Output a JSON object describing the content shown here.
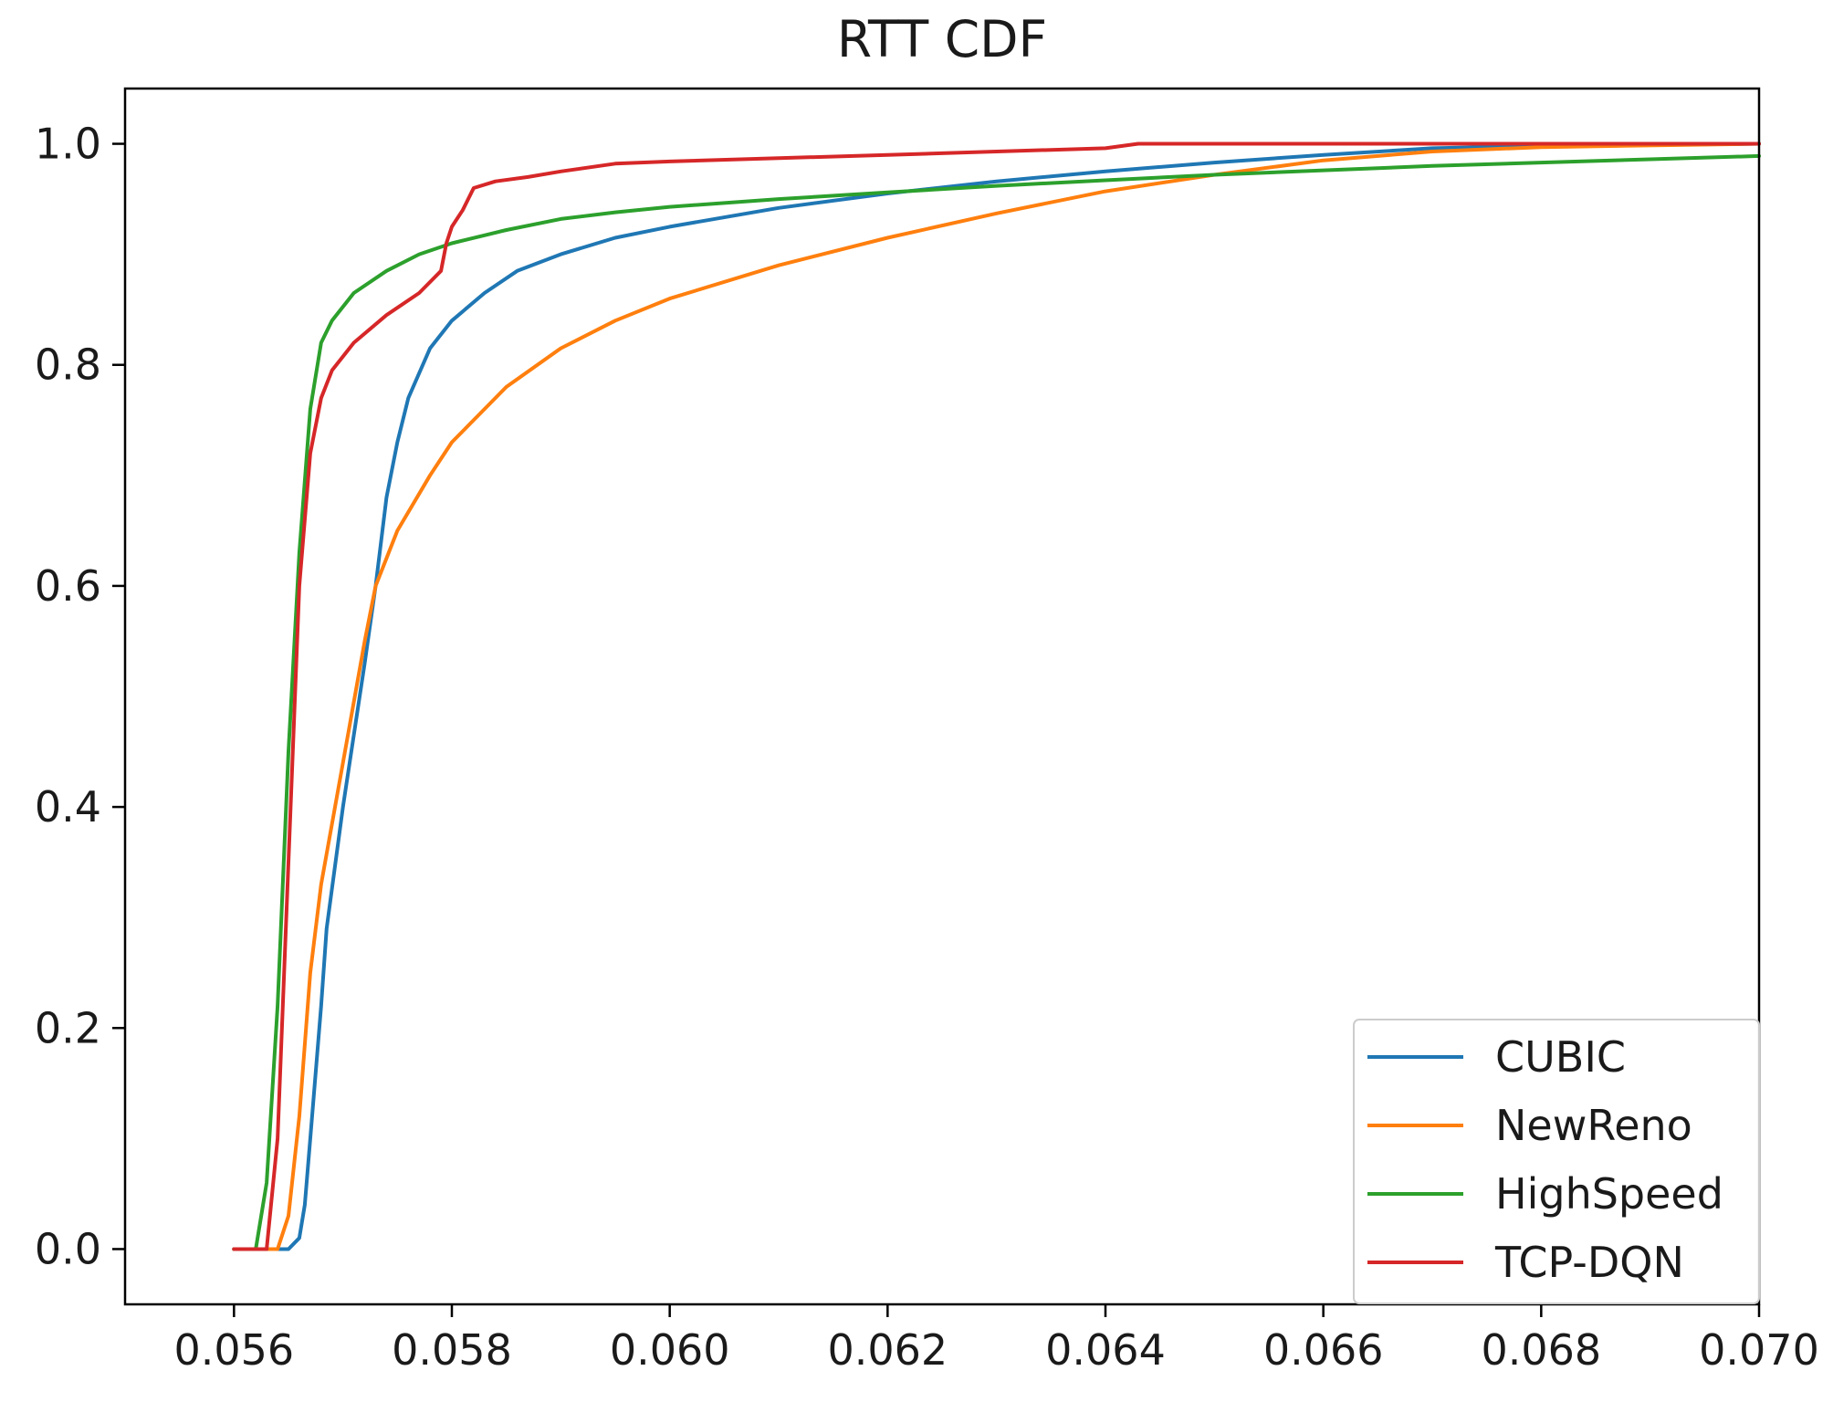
{
  "chart_data": {
    "type": "line",
    "title": "RTT CDF",
    "xlabel": "",
    "ylabel": "",
    "xlim": [
      0.055,
      0.07
    ],
    "ylim": [
      -0.05,
      1.05
    ],
    "x_ticks": [
      0.056,
      0.058,
      0.06,
      0.062,
      0.064,
      0.066,
      0.068,
      0.07
    ],
    "x_tick_labels": [
      "0.056",
      "0.058",
      "0.060",
      "0.062",
      "0.064",
      "0.066",
      "0.068",
      "0.070"
    ],
    "y_ticks": [
      0.0,
      0.2,
      0.4,
      0.6,
      0.8,
      1.0
    ],
    "y_tick_labels": [
      "0.0",
      "0.2",
      "0.4",
      "0.6",
      "0.8",
      "1.0"
    ],
    "grid": false,
    "legend_position": "bottom-right",
    "series": [
      {
        "name": "CUBIC",
        "color": "#1f77b4",
        "points": [
          [
            0.056,
            0.0
          ],
          [
            0.0565,
            0.0
          ],
          [
            0.0566,
            0.01
          ],
          [
            0.05665,
            0.04
          ],
          [
            0.0567,
            0.1
          ],
          [
            0.0568,
            0.22
          ],
          [
            0.05685,
            0.29
          ],
          [
            0.057,
            0.4
          ],
          [
            0.0572,
            0.53
          ],
          [
            0.0573,
            0.6
          ],
          [
            0.0574,
            0.68
          ],
          [
            0.0575,
            0.73
          ],
          [
            0.0576,
            0.77
          ],
          [
            0.0578,
            0.815
          ],
          [
            0.058,
            0.84
          ],
          [
            0.0583,
            0.865
          ],
          [
            0.0586,
            0.885
          ],
          [
            0.059,
            0.9
          ],
          [
            0.0595,
            0.915
          ],
          [
            0.06,
            0.925
          ],
          [
            0.061,
            0.942
          ],
          [
            0.062,
            0.955
          ],
          [
            0.063,
            0.966
          ],
          [
            0.064,
            0.975
          ],
          [
            0.065,
            0.983
          ],
          [
            0.066,
            0.99
          ],
          [
            0.067,
            0.996
          ],
          [
            0.068,
            0.998
          ],
          [
            0.07,
            1.0
          ]
        ]
      },
      {
        "name": "NewReno",
        "color": "#ff7f0e",
        "points": [
          [
            0.056,
            0.0
          ],
          [
            0.0564,
            0.0
          ],
          [
            0.0565,
            0.03
          ],
          [
            0.0566,
            0.12
          ],
          [
            0.0567,
            0.25
          ],
          [
            0.0568,
            0.33
          ],
          [
            0.057,
            0.44
          ],
          [
            0.0572,
            0.55
          ],
          [
            0.0573,
            0.6
          ],
          [
            0.0575,
            0.65
          ],
          [
            0.0578,
            0.7
          ],
          [
            0.058,
            0.73
          ],
          [
            0.0585,
            0.78
          ],
          [
            0.059,
            0.815
          ],
          [
            0.0595,
            0.84
          ],
          [
            0.06,
            0.86
          ],
          [
            0.061,
            0.89
          ],
          [
            0.062,
            0.915
          ],
          [
            0.063,
            0.937
          ],
          [
            0.064,
            0.957
          ],
          [
            0.065,
            0.972
          ],
          [
            0.066,
            0.985
          ],
          [
            0.067,
            0.993
          ],
          [
            0.068,
            0.997
          ],
          [
            0.07,
            1.0
          ]
        ]
      },
      {
        "name": "HighSpeed",
        "color": "#2ca02c",
        "points": [
          [
            0.056,
            0.0
          ],
          [
            0.0562,
            0.0
          ],
          [
            0.0563,
            0.06
          ],
          [
            0.0564,
            0.22
          ],
          [
            0.0565,
            0.45
          ],
          [
            0.0566,
            0.63
          ],
          [
            0.0567,
            0.76
          ],
          [
            0.0568,
            0.82
          ],
          [
            0.0569,
            0.84
          ],
          [
            0.0571,
            0.865
          ],
          [
            0.0574,
            0.885
          ],
          [
            0.0577,
            0.9
          ],
          [
            0.058,
            0.91
          ],
          [
            0.0585,
            0.922
          ],
          [
            0.059,
            0.932
          ],
          [
            0.0595,
            0.938
          ],
          [
            0.06,
            0.943
          ],
          [
            0.061,
            0.95
          ],
          [
            0.062,
            0.956
          ],
          [
            0.063,
            0.962
          ],
          [
            0.064,
            0.967
          ],
          [
            0.065,
            0.972
          ],
          [
            0.066,
            0.976
          ],
          [
            0.067,
            0.98
          ],
          [
            0.068,
            0.983
          ],
          [
            0.069,
            0.986
          ],
          [
            0.07,
            0.989
          ]
        ]
      },
      {
        "name": "TCP-DQN",
        "color": "#d62728",
        "points": [
          [
            0.056,
            0.0
          ],
          [
            0.0563,
            0.0
          ],
          [
            0.0564,
            0.1
          ],
          [
            0.0565,
            0.35
          ],
          [
            0.0566,
            0.6
          ],
          [
            0.0567,
            0.72
          ],
          [
            0.0568,
            0.77
          ],
          [
            0.0569,
            0.795
          ],
          [
            0.0571,
            0.82
          ],
          [
            0.0574,
            0.845
          ],
          [
            0.0577,
            0.865
          ],
          [
            0.0579,
            0.885
          ],
          [
            0.05795,
            0.91
          ],
          [
            0.058,
            0.925
          ],
          [
            0.0581,
            0.94
          ],
          [
            0.0582,
            0.96
          ],
          [
            0.0584,
            0.966
          ],
          [
            0.0587,
            0.97
          ],
          [
            0.059,
            0.975
          ],
          [
            0.0595,
            0.982
          ],
          [
            0.06,
            0.984
          ],
          [
            0.061,
            0.987
          ],
          [
            0.062,
            0.99
          ],
          [
            0.063,
            0.993
          ],
          [
            0.064,
            0.996
          ],
          [
            0.0643,
            1.0
          ],
          [
            0.07,
            1.0
          ]
        ]
      }
    ]
  }
}
